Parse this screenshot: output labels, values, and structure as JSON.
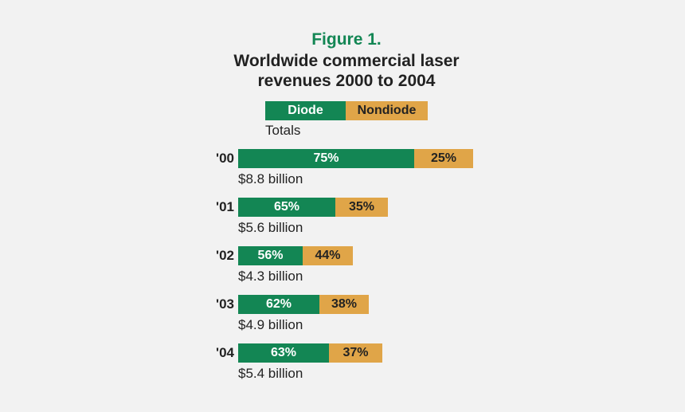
{
  "figure": {
    "label": "Figure 1.",
    "title": "Worldwide commercial laser revenues 2000 to 2004"
  },
  "legend": {
    "diode": "Diode",
    "nondiode": "Nondiode",
    "totals_label": "Totals"
  },
  "colors": {
    "diode": "#138654",
    "nondiode": "#e0a548",
    "title_accent": "#138654"
  },
  "chart_data": {
    "type": "bar",
    "orientation": "horizontal",
    "stacked": true,
    "title": "Worldwide commercial laser revenues 2000 to 2004",
    "categories": [
      "'00",
      "'01",
      "'02",
      "'03",
      "'04"
    ],
    "series": [
      {
        "name": "Diode",
        "labels": [
          "75%",
          "65%",
          "56%",
          "62%",
          "63%"
        ],
        "values": [
          75,
          65,
          56,
          62,
          63
        ]
      },
      {
        "name": "Nondiode",
        "labels": [
          "25%",
          "35%",
          "44%",
          "38%",
          "37%"
        ],
        "values": [
          25,
          35,
          44,
          38,
          37
        ]
      }
    ],
    "totals": {
      "values": [
        8.8,
        5.6,
        4.3,
        4.9,
        5.4
      ],
      "unit": "billion USD",
      "labels": [
        "$8.8 billion",
        "$5.6 billion",
        "$4.3 billion",
        "$4.9 billion",
        "$5.4 billion"
      ]
    }
  }
}
